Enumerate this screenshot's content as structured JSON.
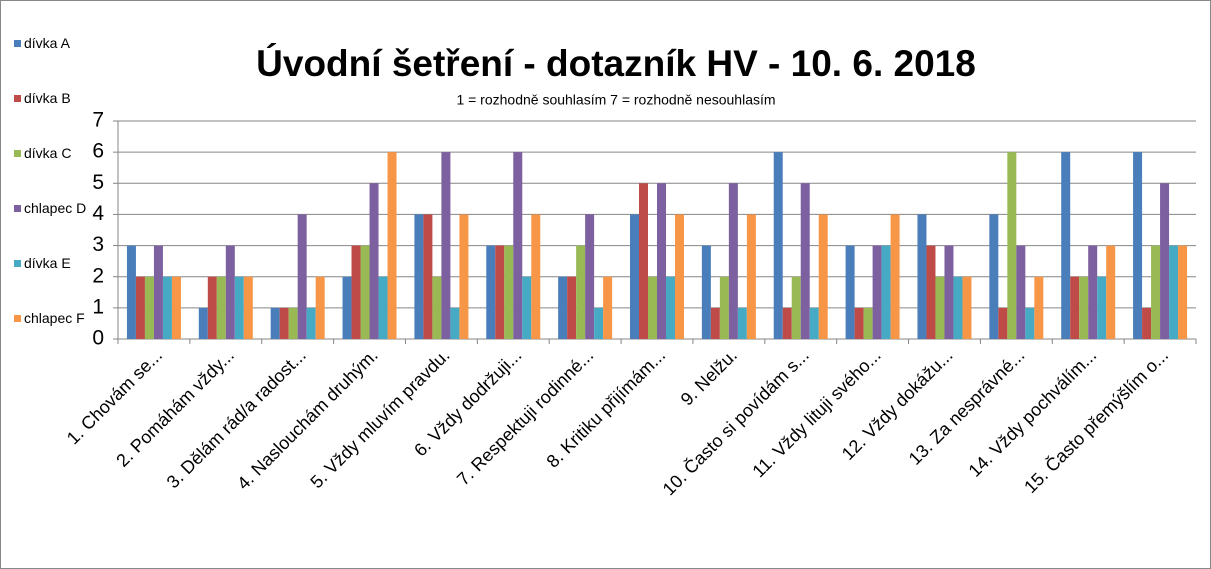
{
  "chart_data": {
    "type": "bar",
    "title": "Úvodní šetření - dotazník HV - 10. 6. 2018",
    "subtitle": "1 = rozhodně souhlasím  7 = rozhodně nesouhlasím",
    "categories": [
      "1. Chovám se...",
      "2. Pomáhám vždy...",
      "3. Dělám rád/a radost...",
      "4. Naslouchám druhým.",
      "5. Vždy mluvím pravdu.",
      "6. Vždy dodržuji...",
      "7. Respektuji rodinné...",
      "8. Kritiku přijímám...",
      "9. Nelžu.",
      "10. Často si povídám s...",
      "11. Vždy lituji svého...",
      "12. Vždy dokážu...",
      "13. Za nesprávné...",
      "14. Vždy pochválím...",
      "15. Často přemýšlím o..."
    ],
    "series": [
      {
        "name": "dívka A",
        "color": "#4a7ebb",
        "values": [
          3,
          1,
          1,
          2,
          4,
          3,
          2,
          4,
          3,
          6,
          3,
          4,
          4,
          6,
          6
        ]
      },
      {
        "name": "dívka B",
        "color": "#be4b48",
        "values": [
          2,
          2,
          1,
          3,
          4,
          3,
          2,
          5,
          1,
          1,
          1,
          3,
          1,
          2,
          1
        ]
      },
      {
        "name": "dívka C",
        "color": "#98b954",
        "values": [
          2,
          2,
          1,
          3,
          2,
          3,
          3,
          2,
          2,
          2,
          1,
          2,
          6,
          2,
          3
        ]
      },
      {
        "name": "chlapec D",
        "color": "#7d60a0",
        "values": [
          3,
          3,
          4,
          5,
          6,
          6,
          4,
          5,
          5,
          5,
          3,
          3,
          3,
          3,
          5
        ]
      },
      {
        "name": "dívka E",
        "color": "#46aac5",
        "values": [
          2,
          2,
          1,
          2,
          1,
          2,
          1,
          2,
          1,
          1,
          3,
          2,
          1,
          2,
          3
        ]
      },
      {
        "name": "chlapec F",
        "color": "#f79646",
        "values": [
          2,
          2,
          2,
          6,
          4,
          4,
          2,
          4,
          4,
          4,
          4,
          2,
          2,
          3,
          3
        ]
      }
    ],
    "ylim": [
      0,
      7
    ],
    "yticks": [
      0,
      1,
      2,
      3,
      4,
      5,
      6,
      7
    ],
    "grid": true,
    "legend": "left"
  }
}
